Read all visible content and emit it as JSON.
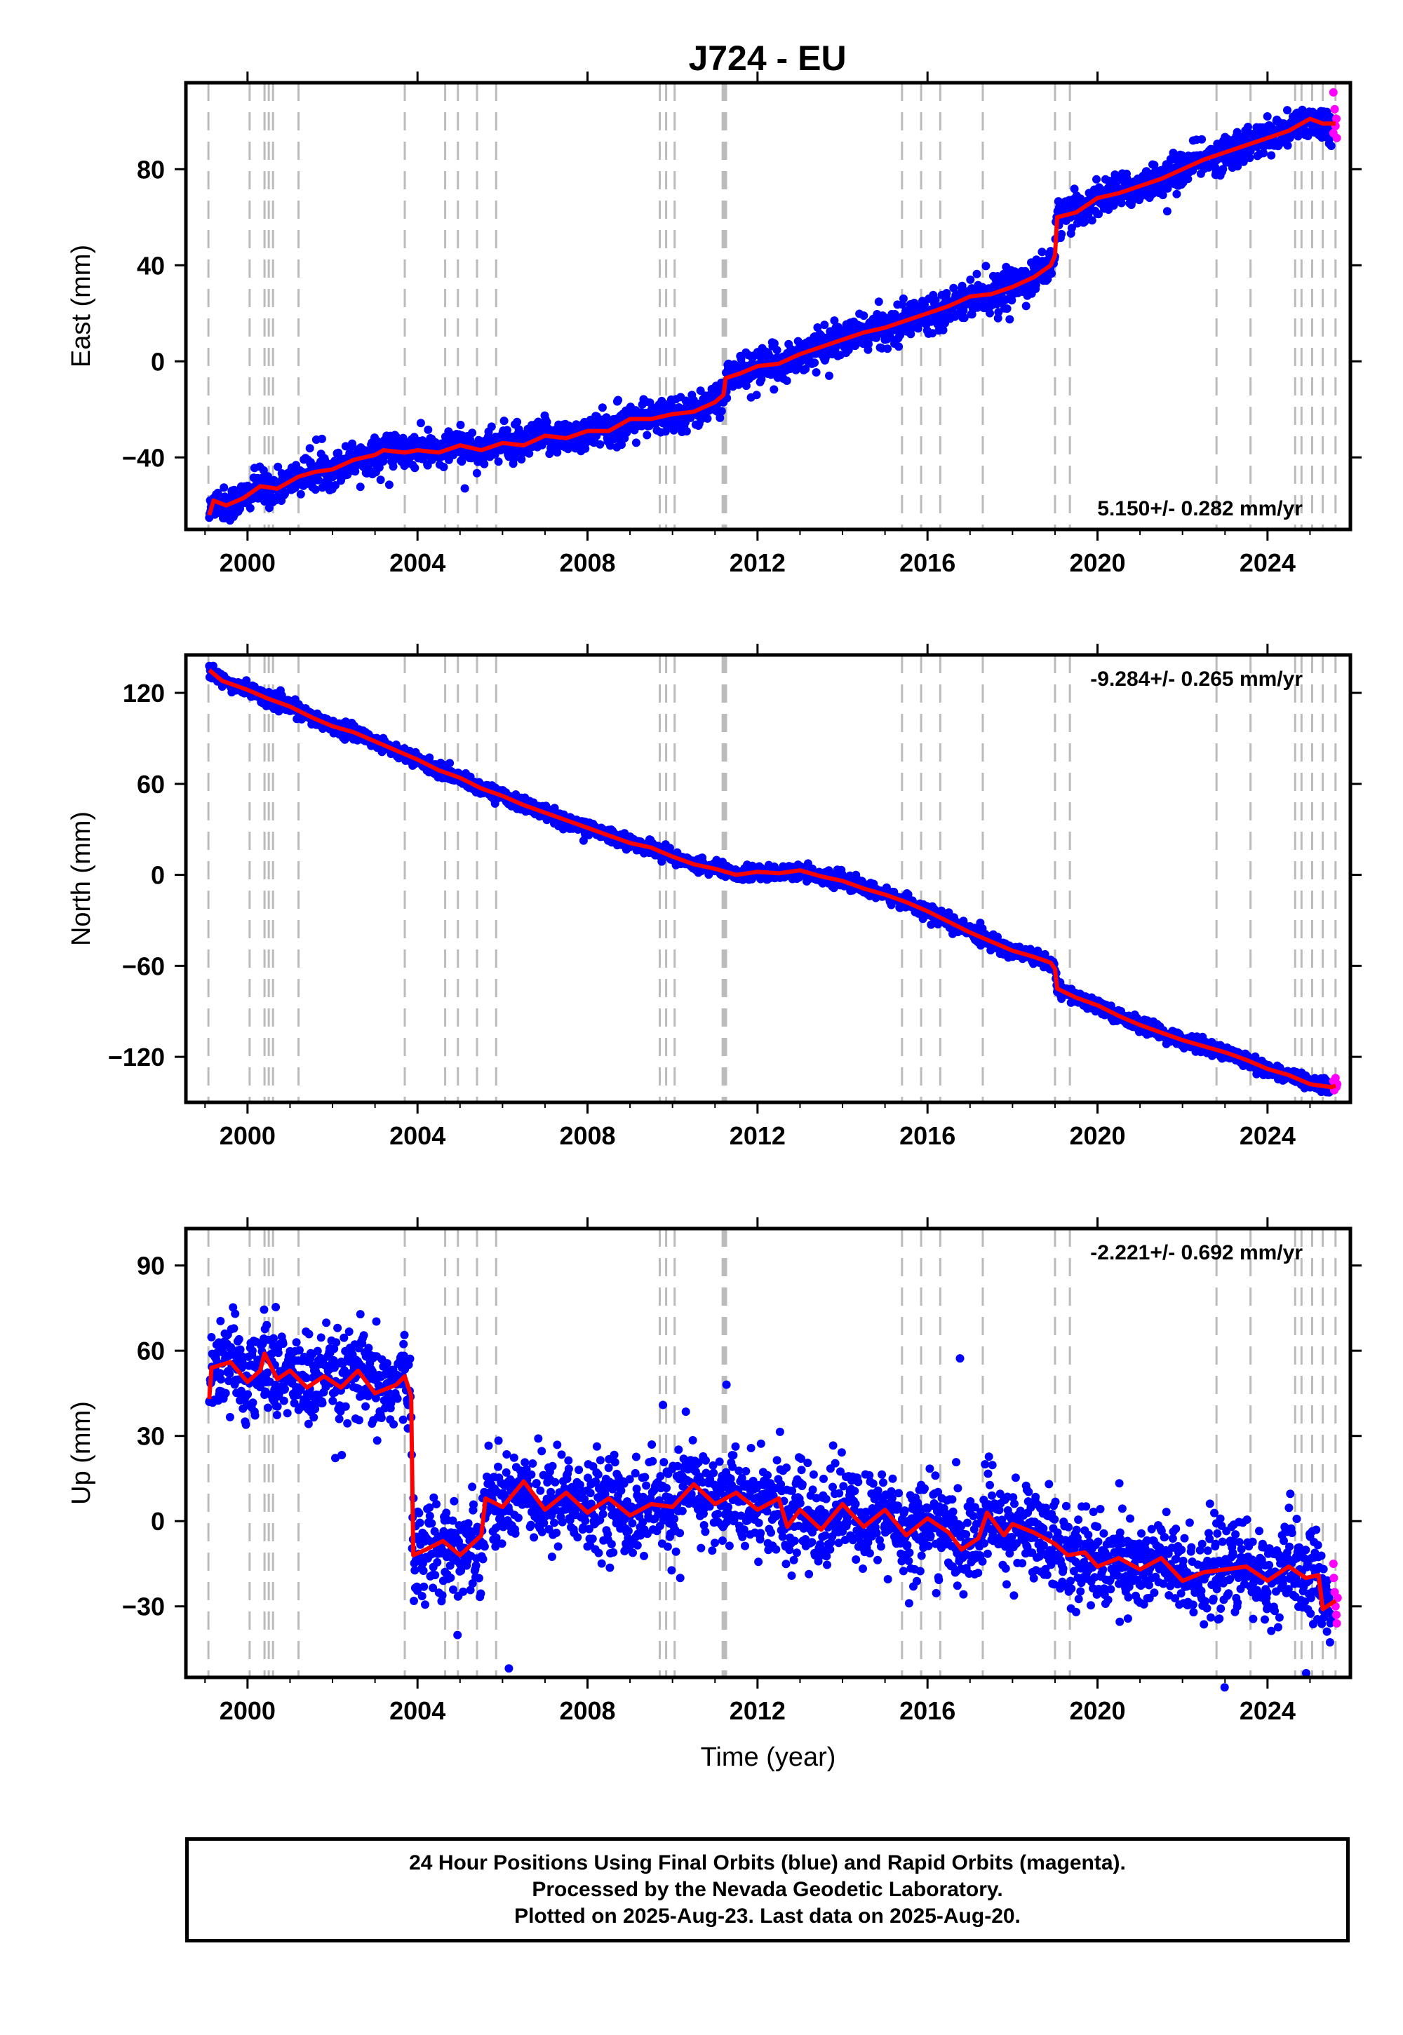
{
  "title": "J724 - EU",
  "chart_data": [
    {
      "type": "scatter",
      "panel": "east",
      "ylabel": "East (mm)",
      "xlabel": "",
      "rate_text": "5.150+/- 0.282 mm/yr",
      "rate_position": "bottom-right",
      "xlim": [
        1998.55,
        2025.95
      ],
      "ylim": [
        -70,
        116
      ],
      "yticks": [
        -40,
        0,
        40,
        80
      ],
      "ytick_labels": [
        "−40",
        "0",
        "40",
        "80"
      ],
      "xticks": [
        2000,
        2004,
        2008,
        2012,
        2016,
        2020,
        2024
      ],
      "xtick_labels": [
        "2000",
        "2004",
        "2008",
        "2012",
        "2016",
        "2020",
        "2024"
      ],
      "noise_mm": 3.5,
      "model_points": [
        [
          1999.1,
          -64
        ],
        [
          1999.2,
          -58
        ],
        [
          1999.5,
          -60
        ],
        [
          1999.9,
          -57
        ],
        [
          2000.3,
          -52
        ],
        [
          2000.7,
          -53
        ],
        [
          2001.2,
          -48
        ],
        [
          2001.6,
          -46
        ],
        [
          2002.0,
          -45
        ],
        [
          2002.5,
          -41
        ],
        [
          2003.0,
          -39
        ],
        [
          2003.2,
          -37
        ],
        [
          2003.7,
          -38
        ],
        [
          2004.0,
          -37
        ],
        [
          2004.5,
          -38
        ],
        [
          2005.0,
          -35
        ],
        [
          2005.5,
          -37
        ],
        [
          2006.0,
          -34
        ],
        [
          2006.5,
          -35
        ],
        [
          2007.0,
          -31
        ],
        [
          2007.5,
          -32
        ],
        [
          2008.0,
          -29
        ],
        [
          2008.5,
          -29
        ],
        [
          2009.0,
          -24
        ],
        [
          2009.5,
          -24
        ],
        [
          2010.0,
          -22
        ],
        [
          2010.5,
          -21
        ],
        [
          2011.0,
          -17
        ],
        [
          2011.2,
          -14
        ],
        [
          2011.25,
          -7
        ],
        [
          2011.6,
          -5
        ],
        [
          2012.0,
          -2
        ],
        [
          2012.5,
          -1
        ],
        [
          2013.0,
          3
        ],
        [
          2013.5,
          6
        ],
        [
          2014.0,
          9
        ],
        [
          2014.5,
          12
        ],
        [
          2015.0,
          14
        ],
        [
          2015.5,
          17
        ],
        [
          2016.0,
          20
        ],
        [
          2016.5,
          23
        ],
        [
          2017.0,
          27
        ],
        [
          2017.5,
          28
        ],
        [
          2018.0,
          31
        ],
        [
          2018.5,
          35
        ],
        [
          2018.9,
          40
        ],
        [
          2019.0,
          44
        ],
        [
          2019.05,
          60
        ],
        [
          2019.5,
          62
        ],
        [
          2020.0,
          68
        ],
        [
          2020.5,
          70
        ],
        [
          2021.0,
          73
        ],
        [
          2021.5,
          76
        ],
        [
          2022.0,
          80
        ],
        [
          2022.5,
          84
        ],
        [
          2023.0,
          87
        ],
        [
          2023.5,
          90
        ],
        [
          2024.0,
          93
        ],
        [
          2024.5,
          96
        ],
        [
          2025.0,
          101
        ],
        [
          2025.3,
          99
        ],
        [
          2025.6,
          99
        ]
      ],
      "rapid_points": [
        [
          2025.55,
          112
        ],
        [
          2025.55,
          95
        ],
        [
          2025.58,
          105
        ],
        [
          2025.6,
          98
        ],
        [
          2025.62,
          101
        ],
        [
          2025.63,
          93
        ]
      ]
    },
    {
      "type": "scatter",
      "panel": "north",
      "ylabel": "North (mm)",
      "xlabel": "",
      "rate_text": "-9.284+/- 0.265 mm/yr",
      "rate_position": "top-right",
      "xlim": [
        1998.55,
        2025.95
      ],
      "ylim": [
        -150,
        145
      ],
      "yticks": [
        -120,
        -60,
        0,
        60,
        120
      ],
      "ytick_labels": [
        "−120",
        "−60",
        "0",
        "60",
        "120"
      ],
      "xticks": [
        2000,
        2004,
        2008,
        2012,
        2016,
        2020,
        2024
      ],
      "xtick_labels": [
        "2000",
        "2004",
        "2008",
        "2012",
        "2016",
        "2020",
        "2024"
      ],
      "noise_mm": 2.2,
      "model_points": [
        [
          1999.1,
          135
        ],
        [
          1999.4,
          128
        ],
        [
          2000.0,
          122
        ],
        [
          2000.5,
          116
        ],
        [
          2001.0,
          111
        ],
        [
          2001.5,
          104
        ],
        [
          2002.0,
          98
        ],
        [
          2002.5,
          94
        ],
        [
          2003.0,
          88
        ],
        [
          2003.5,
          82
        ],
        [
          2004.0,
          76
        ],
        [
          2004.5,
          69
        ],
        [
          2005.0,
          64
        ],
        [
          2005.5,
          57
        ],
        [
          2006.0,
          52
        ],
        [
          2006.5,
          46
        ],
        [
          2007.0,
          41
        ],
        [
          2007.5,
          36
        ],
        [
          2008.0,
          31
        ],
        [
          2008.5,
          26
        ],
        [
          2009.0,
          21
        ],
        [
          2009.5,
          18
        ],
        [
          2010.0,
          12
        ],
        [
          2010.5,
          7
        ],
        [
          2011.0,
          4
        ],
        [
          2011.5,
          0
        ],
        [
          2012.0,
          2
        ],
        [
          2012.5,
          1
        ],
        [
          2013.0,
          3
        ],
        [
          2013.5,
          -1
        ],
        [
          2014.0,
          -4
        ],
        [
          2014.5,
          -9
        ],
        [
          2015.0,
          -13
        ],
        [
          2015.5,
          -18
        ],
        [
          2016.0,
          -24
        ],
        [
          2016.5,
          -31
        ],
        [
          2017.0,
          -38
        ],
        [
          2017.5,
          -44
        ],
        [
          2018.0,
          -50
        ],
        [
          2018.5,
          -54
        ],
        [
          2018.9,
          -58
        ],
        [
          2019.0,
          -62
        ],
        [
          2019.05,
          -75
        ],
        [
          2019.5,
          -81
        ],
        [
          2020.0,
          -86
        ],
        [
          2020.5,
          -93
        ],
        [
          2021.0,
          -99
        ],
        [
          2021.5,
          -104
        ],
        [
          2022.0,
          -109
        ],
        [
          2022.5,
          -113
        ],
        [
          2023.0,
          -117
        ],
        [
          2023.5,
          -122
        ],
        [
          2024.0,
          -128
        ],
        [
          2024.5,
          -132
        ],
        [
          2025.0,
          -138
        ],
        [
          2025.5,
          -140
        ],
        [
          2025.6,
          -139
        ]
      ],
      "rapid_points": [
        [
          2025.55,
          -136
        ],
        [
          2025.57,
          -142
        ],
        [
          2025.6,
          -134
        ],
        [
          2025.62,
          -140
        ],
        [
          2025.64,
          -138
        ]
      ]
    },
    {
      "type": "scatter",
      "panel": "up",
      "ylabel": "Up (mm)",
      "xlabel": "Time (year)",
      "rate_text": "-2.221+/- 0.692 mm/yr",
      "rate_position": "top-right",
      "xlim": [
        1998.55,
        2025.95
      ],
      "ylim": [
        -55,
        103
      ],
      "yticks": [
        -30,
        0,
        30,
        60,
        90
      ],
      "ytick_labels": [
        "−30",
        "0",
        "30",
        "60",
        "90"
      ],
      "xticks": [
        2000,
        2004,
        2008,
        2012,
        2016,
        2020,
        2024
      ],
      "xtick_labels": [
        "2000",
        "2004",
        "2008",
        "2012",
        "2016",
        "2020",
        "2024"
      ],
      "noise_mm": 8,
      "model_points": [
        [
          1999.1,
          43
        ],
        [
          1999.15,
          54
        ],
        [
          1999.6,
          56
        ],
        [
          2000.0,
          49
        ],
        [
          2000.3,
          53
        ],
        [
          2000.4,
          59
        ],
        [
          2000.7,
          50
        ],
        [
          2001.0,
          53
        ],
        [
          2001.4,
          47
        ],
        [
          2001.8,
          51
        ],
        [
          2002.2,
          47
        ],
        [
          2002.6,
          53
        ],
        [
          2003.0,
          45
        ],
        [
          2003.5,
          48
        ],
        [
          2003.7,
          51
        ],
        [
          2003.85,
          44
        ],
        [
          2003.9,
          -12
        ],
        [
          2004.2,
          -10
        ],
        [
          2004.6,
          -7
        ],
        [
          2005.0,
          -12
        ],
        [
          2005.5,
          -5
        ],
        [
          2005.6,
          8
        ],
        [
          2006.0,
          5
        ],
        [
          2006.5,
          14
        ],
        [
          2007.0,
          4
        ],
        [
          2007.5,
          10
        ],
        [
          2008.0,
          3
        ],
        [
          2008.5,
          8
        ],
        [
          2009.0,
          2
        ],
        [
          2009.5,
          6
        ],
        [
          2010.0,
          5
        ],
        [
          2010.5,
          13
        ],
        [
          2011.0,
          6
        ],
        [
          2011.5,
          10
        ],
        [
          2012.0,
          4
        ],
        [
          2012.5,
          8
        ],
        [
          2012.7,
          -2
        ],
        [
          2013.0,
          4
        ],
        [
          2013.5,
          -3
        ],
        [
          2014.0,
          6
        ],
        [
          2014.5,
          -2
        ],
        [
          2015.0,
          4
        ],
        [
          2015.5,
          -5
        ],
        [
          2016.0,
          1
        ],
        [
          2016.5,
          -4
        ],
        [
          2016.8,
          -10
        ],
        [
          2017.2,
          -6
        ],
        [
          2017.4,
          3
        ],
        [
          2017.8,
          -5
        ],
        [
          2018.0,
          -1
        ],
        [
          2018.5,
          -4
        ],
        [
          2019.0,
          -8
        ],
        [
          2019.3,
          -12
        ],
        [
          2019.7,
          -11
        ],
        [
          2020.0,
          -16
        ],
        [
          2020.5,
          -13
        ],
        [
          2021.0,
          -17
        ],
        [
          2021.5,
          -13
        ],
        [
          2022.0,
          -21
        ],
        [
          2022.5,
          -18
        ],
        [
          2023.0,
          -17
        ],
        [
          2023.5,
          -16
        ],
        [
          2024.0,
          -21
        ],
        [
          2024.5,
          -16
        ],
        [
          2024.9,
          -20
        ],
        [
          2025.2,
          -19
        ],
        [
          2025.3,
          -31
        ],
        [
          2025.6,
          -28
        ]
      ],
      "model_note": "",
      "rapid_points": [
        [
          2025.55,
          -15
        ],
        [
          2025.56,
          -20
        ],
        [
          2025.58,
          -25
        ],
        [
          2025.6,
          -30
        ],
        [
          2025.62,
          -33
        ],
        [
          2025.63,
          -36
        ],
        [
          2025.65,
          -27
        ]
      ]
    }
  ],
  "events": [
    1999.08,
    2000.05,
    2000.4,
    2000.5,
    2000.6,
    2001.2,
    2003.7,
    2004.65,
    2004.95,
    2005.4,
    2005.85,
    2009.7,
    2009.85,
    2010.05,
    2011.18,
    2011.22,
    2011.26,
    2015.4,
    2015.85,
    2016.3,
    2017.3,
    2019.0,
    2019.35,
    2022.8,
    2023.6,
    2024.65,
    2024.8,
    2025.05,
    2025.3,
    2025.6
  ],
  "colors": {
    "final": "#0000ff",
    "rapid": "#ff00ff",
    "model": "#ff0000",
    "event": "#bbbbbb",
    "frame": "#000000"
  },
  "footer": {
    "line1": "24 Hour Positions Using Final Orbits (blue) and Rapid Orbits (magenta).",
    "line2": "Processed by the Nevada Geodetic Laboratory.",
    "line3": "Plotted on 2025-Aug-23. Last data on 2025-Aug-20."
  }
}
